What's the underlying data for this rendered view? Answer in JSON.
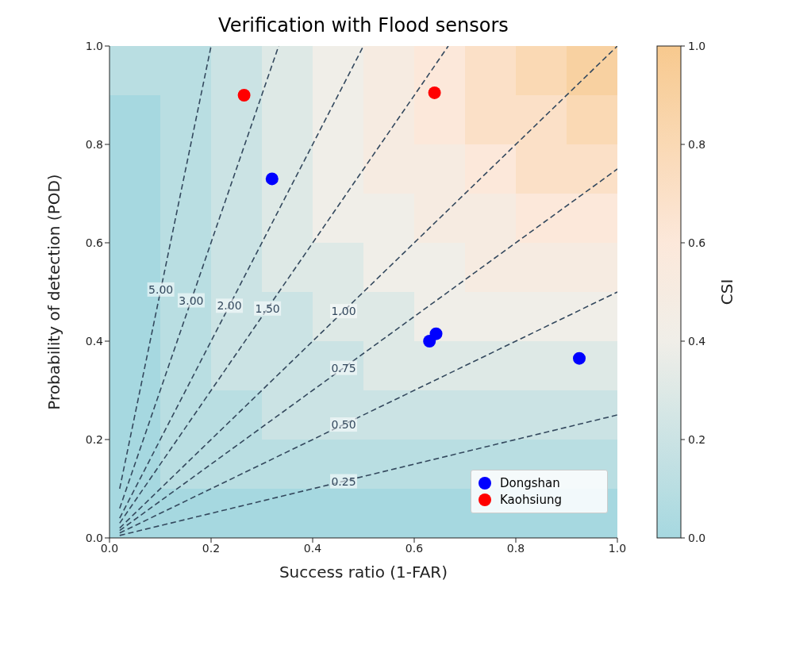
{
  "chart_data": [
    {
      "type": "heatmap",
      "clabel": "CSI",
      "clim": [
        0,
        1
      ],
      "cticks": [
        {
          "value": 0,
          "label": "0.0"
        },
        {
          "value": 0.2,
          "label": "0.2"
        },
        {
          "value": 0.4,
          "label": "0.4"
        },
        {
          "value": 0.6,
          "label": "0.6"
        },
        {
          "value": 0.8,
          "label": "0.8"
        },
        {
          "value": 1,
          "label": "1.0"
        }
      ],
      "categories": [
        null,
        null,
        null,
        null,
        null,
        null,
        null,
        null,
        null,
        null
      ],
      "y_categories": [
        null,
        null,
        null,
        null,
        null,
        null,
        null,
        null,
        null,
        null
      ],
      "cells": [
        [
          0.1,
          0.1,
          0.2,
          0.3,
          0.4,
          0.5,
          0.6,
          0.7,
          0.8,
          0.9
        ],
        [
          0.0,
          0.1,
          0.2,
          0.3,
          0.4,
          0.5,
          0.6,
          0.7,
          0.7,
          0.8
        ],
        [
          0.0,
          0.1,
          0.2,
          0.3,
          0.4,
          0.5,
          0.5,
          0.6,
          0.7,
          0.7
        ],
        [
          0.0,
          0.1,
          0.2,
          0.3,
          0.4,
          0.4,
          0.5,
          0.5,
          0.6,
          0.6
        ],
        [
          0.0,
          0.1,
          0.2,
          0.3,
          0.3,
          0.4,
          0.4,
          0.5,
          0.5,
          0.5
        ],
        [
          0.0,
          0.1,
          0.2,
          0.2,
          0.3,
          0.3,
          0.4,
          0.4,
          0.4,
          0.4
        ],
        [
          0.0,
          0.1,
          0.2,
          0.2,
          0.2,
          0.3,
          0.3,
          0.3,
          0.3,
          0.3
        ],
        [
          0.0,
          0.1,
          0.1,
          0.2,
          0.2,
          0.2,
          0.2,
          0.2,
          0.2,
          0.2
        ],
        [
          0.0,
          0.1,
          0.1,
          0.1,
          0.1,
          0.1,
          0.1,
          0.1,
          0.1,
          0.1
        ],
        [
          0.0,
          0.0,
          0.0,
          0.0,
          0.0,
          0.0,
          0.0,
          0.0,
          0.0,
          0.0
        ]
      ]
    },
    {
      "type": "scatter",
      "title": "Verification with Flood sensors",
      "xlabel": "Success ratio (1-FAR)",
      "ylabel": "Probability of detection (POD)",
      "xlim": [
        0,
        1
      ],
      "ylim": [
        0,
        1
      ],
      "xticks": [
        {
          "value": 0,
          "label": "0.0"
        },
        {
          "value": 0.2,
          "label": "0.2"
        },
        {
          "value": 0.4,
          "label": "0.4"
        },
        {
          "value": 0.6,
          "label": "0.6"
        },
        {
          "value": 0.8,
          "label": "0.8"
        },
        {
          "value": 1,
          "label": "1.0"
        }
      ],
      "yticks": [
        {
          "value": 0,
          "label": "0.0"
        },
        {
          "value": 0.2,
          "label": "0.2"
        },
        {
          "value": 0.4,
          "label": "0.4"
        },
        {
          "value": 0.6,
          "label": "0.6"
        },
        {
          "value": 0.8,
          "label": "0.8"
        },
        {
          "value": 1,
          "label": "1.0"
        }
      ],
      "series": [
        {
          "type": "line",
          "name": "0.25",
          "color": "#34495e",
          "line_style": "dashed",
          "x": [
            0.02,
            1
          ],
          "values": [
            0.005,
            0.25
          ]
        },
        {
          "type": "line",
          "name": "0.50",
          "color": "#34495e",
          "line_style": "dashed",
          "x": [
            0.02,
            1
          ],
          "values": [
            0.01,
            0.5
          ]
        },
        {
          "type": "line",
          "name": "0.75",
          "color": "#34495e",
          "line_style": "dashed",
          "x": [
            0.02,
            1
          ],
          "values": [
            0.015,
            0.75
          ]
        },
        {
          "type": "line",
          "name": "1.00",
          "color": "#34495e",
          "line_style": "dashed",
          "x": [
            0.02,
            1
          ],
          "values": [
            0.02,
            1
          ]
        },
        {
          "type": "line",
          "name": "1.50",
          "color": "#34495e",
          "line_style": "dashed",
          "x": [
            0.02,
            0.667
          ],
          "values": [
            0.03,
            1
          ]
        },
        {
          "type": "line",
          "name": "2.00",
          "color": "#34495e",
          "line_style": "dashed",
          "x": [
            0.02,
            0.5
          ],
          "values": [
            0.04,
            1
          ]
        },
        {
          "type": "line",
          "name": "3.00",
          "color": "#34495e",
          "line_style": "dashed",
          "x": [
            0.02,
            0.333
          ],
          "values": [
            0.06,
            1
          ]
        },
        {
          "type": "line",
          "name": "5.00",
          "color": "#34495e",
          "line_style": "dashed",
          "x": [
            0.02,
            0.2
          ],
          "values": [
            0.1,
            1
          ]
        },
        {
          "type": "scatter",
          "name": "Dongshan",
          "color": "#0000ff",
          "marker": "circle",
          "x": [
            0.32,
            0.63,
            0.643,
            0.925
          ],
          "values": [
            0.73,
            0.4,
            0.415,
            0.365
          ]
        },
        {
          "type": "scatter",
          "name": "Kaohsiung",
          "color": "#ff0000",
          "marker": "circle",
          "x": [
            0.265,
            0.64
          ],
          "values": [
            0.9,
            0.905
          ]
        }
      ],
      "legend": "bottom right"
    }
  ]
}
